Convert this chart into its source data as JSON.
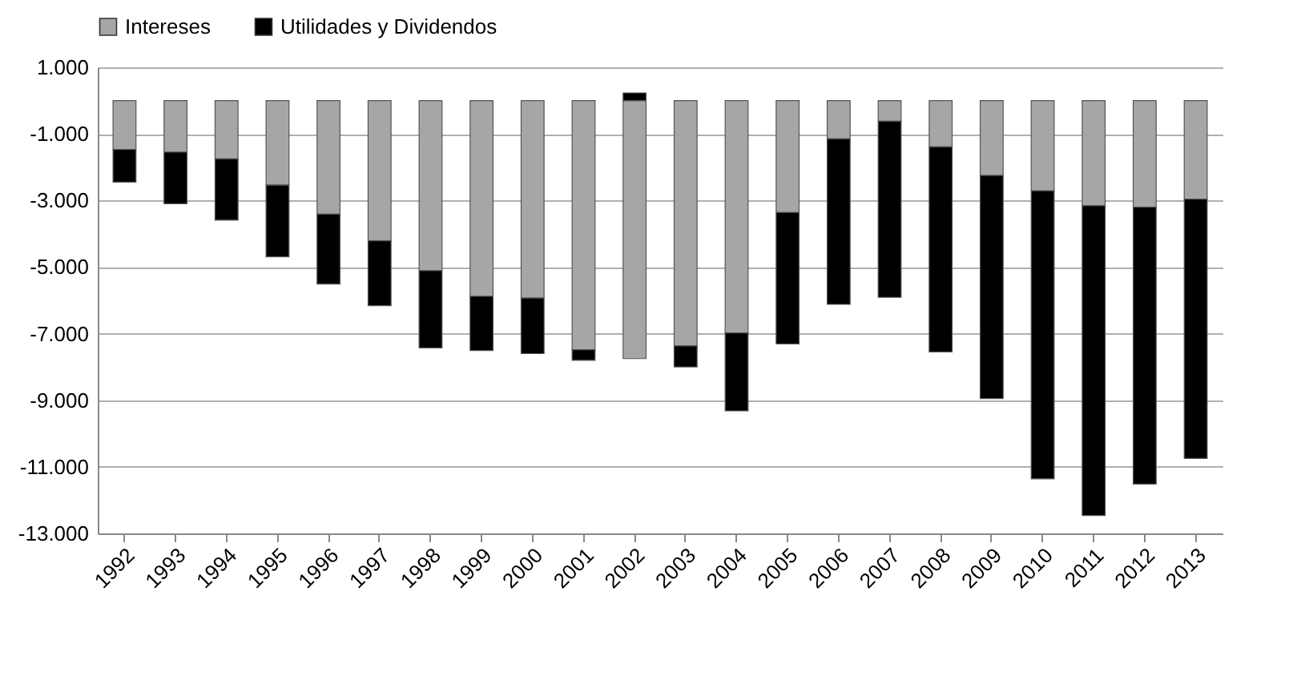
{
  "chart_data": {
    "type": "bar",
    "stacked": true,
    "legend": "top",
    "grid": "y",
    "categories": [
      "1992",
      "1993",
      "1994",
      "1995",
      "1996",
      "1997",
      "1998",
      "1999",
      "2000",
      "2001",
      "2002",
      "2003",
      "2004",
      "2005",
      "2006",
      "2007",
      "2008",
      "2009",
      "2010",
      "2011",
      "2012",
      "2013"
    ],
    "ylim": [
      -13000,
      1000
    ],
    "yticks": [
      {
        "value": 1000,
        "label": "1.000"
      },
      {
        "value": -1000,
        "label": "-1.000"
      },
      {
        "value": -3000,
        "label": "-3.000"
      },
      {
        "value": -5000,
        "label": "-5.000"
      },
      {
        "value": -7000,
        "label": "-7.000"
      },
      {
        "value": -9000,
        "label": "-9.000"
      },
      {
        "value": -11000,
        "label": "-11.000"
      },
      {
        "value": -13000,
        "label": "-13.000"
      }
    ],
    "series": [
      {
        "name": "Intereses",
        "color": "#a6a6a6",
        "values": [
          -1470,
          -1550,
          -1750,
          -2540,
          -3410,
          -4210,
          -5110,
          -5880,
          -5930,
          -7480,
          -7750,
          -7370,
          -6980,
          -3360,
          -1150,
          -620,
          -1390,
          -2250,
          -2710,
          -3160,
          -3200,
          -2960
        ]
      },
      {
        "name": "Utilidades y Dividendos",
        "color": "#000000",
        "values": [
          -980,
          -1550,
          -1840,
          -2150,
          -2100,
          -1950,
          -2320,
          -1630,
          -1670,
          -320,
          230,
          -630,
          -2340,
          -3950,
          -4970,
          -5290,
          -6160,
          -6700,
          -8650,
          -9300,
          -8320,
          -7790
        ]
      }
    ]
  }
}
